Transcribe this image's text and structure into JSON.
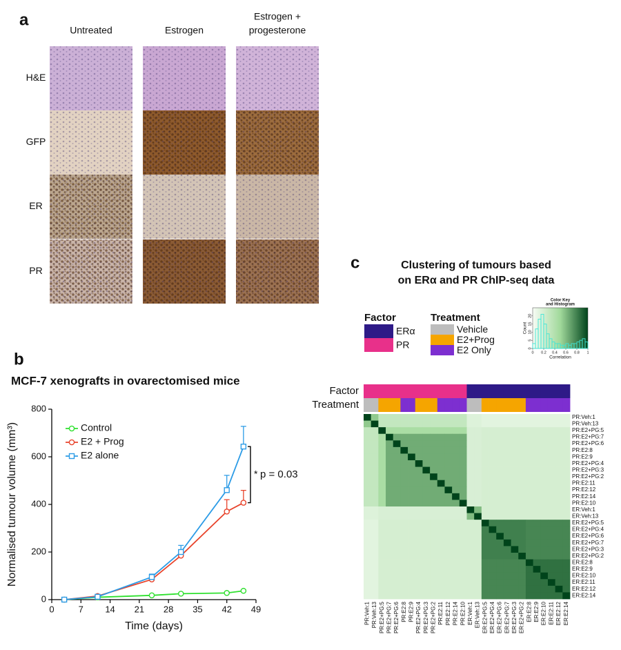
{
  "panel_labels": [
    "a",
    "b",
    "c"
  ],
  "panel_a": {
    "columns": [
      [
        "Untreated"
      ],
      [
        "Estrogen"
      ],
      [
        "Estrogen +",
        "progesterone"
      ]
    ],
    "rows": [
      "H&E",
      "GFP",
      "ER",
      "PR"
    ]
  },
  "chart_data": [
    {
      "type": "line",
      "title": "MCF-7 xenografts in ovarectomised mice",
      "x_label": "Time (days)",
      "y_label": "Normalised tumour volume (mm³)",
      "x": [
        3,
        11,
        24,
        31,
        42,
        46
      ],
      "series": [
        {
          "name": "Control",
          "color": "#2ee02e",
          "marker": "circle",
          "values": [
            0,
            10,
            18,
            25,
            28,
            37
          ],
          "errors": [
            0,
            2,
            2,
            2,
            3,
            4
          ]
        },
        {
          "name": "E2 + Prog",
          "color": "#e8432b",
          "marker": "circle",
          "values": [
            0,
            15,
            85,
            185,
            370,
            407
          ],
          "errors": [
            0,
            3,
            10,
            15,
            50,
            52
          ]
        },
        {
          "name": "E2 alone",
          "color": "#2b9be6",
          "marker": "square",
          "values": [
            0,
            12,
            95,
            200,
            460,
            643
          ],
          "errors": [
            0,
            3,
            12,
            28,
            62,
            85
          ]
        }
      ],
      "xlim": [
        0,
        49
      ],
      "xticks": [
        0,
        7,
        14,
        21,
        28,
        35,
        42,
        49
      ],
      "ylim": [
        0,
        800
      ],
      "yticks": [
        0,
        200,
        400,
        600,
        800
      ],
      "legend": "upper left",
      "significance": {
        "star": "*",
        "text": "p = 0.03"
      }
    },
    {
      "type": "heatmap",
      "title": [
        "Clustering of tumours based",
        "on ERα and PR ChIP-seq data"
      ],
      "labels": [
        "PR:Veh:1",
        "PR:Veh:13",
        "PR:E2+PG:5",
        "PR:E2+PG:7",
        "PR:E2+PG:6",
        "PR:E2:8",
        "PR:E2:9",
        "PR:E2+PG:4",
        "PR:E2+PG:3",
        "PR:E2+PG:2",
        "PR:E2:11",
        "PR:E2:12",
        "PR:E2:14",
        "PR:E2:10",
        "ER:Veh:1",
        "ER:Veh:13",
        "ER:E2+PG:5",
        "ER:E2+PG:4",
        "ER:E2+PG:6",
        "ER:E2+PG:7",
        "ER:E2+PG:3",
        "ER:E2+PG:2",
        "ER:E2:8",
        "ER:E2:9",
        "ER:E2:10",
        "ER:E2:11",
        "ER:E2:12",
        "ER:E2:14"
      ],
      "annotations": [
        {
          "name": "Factor",
          "legend": [
            {
              "name": "ERα",
              "color": "#2e1a87"
            },
            {
              "name": "PR",
              "color": "#e8308a"
            }
          ],
          "values": [
            "PR",
            "PR",
            "PR",
            "PR",
            "PR",
            "PR",
            "PR",
            "PR",
            "PR",
            "PR",
            "PR",
            "PR",
            "PR",
            "PR",
            "ERα",
            "ERα",
            "ERα",
            "ERα",
            "ERα",
            "ERα",
            "ERα",
            "ERα",
            "ERα",
            "ERα",
            "ERα",
            "ERα",
            "ERα",
            "ERα"
          ]
        },
        {
          "name": "Treatment",
          "legend": [
            {
              "name": "Vehicle",
              "color": "#bdbdbd"
            },
            {
              "name": "E2+Prog",
              "color": "#f5a500"
            },
            {
              "name": "E2 Only",
              "color": "#7d2fd0"
            }
          ],
          "values": [
            "Vehicle",
            "Vehicle",
            "E2+Prog",
            "E2+Prog",
            "E2+Prog",
            "E2 Only",
            "E2 Only",
            "E2+Prog",
            "E2+Prog",
            "E2+Prog",
            "E2 Only",
            "E2 Only",
            "E2 Only",
            "E2 Only",
            "Vehicle",
            "Vehicle",
            "E2+Prog",
            "E2+Prog",
            "E2+Prog",
            "E2+Prog",
            "E2+Prog",
            "E2+Prog",
            "E2 Only",
            "E2 Only",
            "E2 Only",
            "E2 Only",
            "E2 Only",
            "E2 Only"
          ]
        }
      ],
      "zlim": [
        0,
        1
      ],
      "colorscale": [
        "#f7fcf5",
        "#a1d99b",
        "#00441b"
      ],
      "values": [
        [
          1,
          0.55,
          0.3,
          0.3,
          0.3,
          0.3,
          0.3,
          0.3,
          0.3,
          0.3,
          0.3,
          0.3,
          0.3,
          0.3,
          0.15,
          0.15,
          0.12,
          0.12,
          0.12,
          0.12,
          0.12,
          0.12,
          0.12,
          0.12,
          0.12,
          0.12,
          0.12,
          0.12
        ],
        [
          0.55,
          1,
          0.3,
          0.3,
          0.3,
          0.3,
          0.3,
          0.3,
          0.3,
          0.3,
          0.3,
          0.3,
          0.3,
          0.3,
          0.15,
          0.15,
          0.12,
          0.12,
          0.12,
          0.12,
          0.12,
          0.12,
          0.12,
          0.12,
          0.12,
          0.12,
          0.12,
          0.12
        ],
        [
          0.3,
          0.3,
          1,
          0.45,
          0.45,
          0.45,
          0.45,
          0.45,
          0.45,
          0.45,
          0.45,
          0.45,
          0.45,
          0.45,
          0.18,
          0.18,
          0.2,
          0.2,
          0.2,
          0.2,
          0.2,
          0.2,
          0.2,
          0.2,
          0.2,
          0.2,
          0.2,
          0.2
        ],
        [
          0.3,
          0.3,
          0.45,
          1,
          0.65,
          0.65,
          0.65,
          0.65,
          0.65,
          0.65,
          0.65,
          0.65,
          0.65,
          0.65,
          0.18,
          0.18,
          0.2,
          0.2,
          0.2,
          0.2,
          0.2,
          0.2,
          0.2,
          0.2,
          0.2,
          0.2,
          0.2,
          0.2
        ],
        [
          0.3,
          0.3,
          0.45,
          0.65,
          1,
          0.65,
          0.65,
          0.65,
          0.65,
          0.65,
          0.65,
          0.65,
          0.65,
          0.65,
          0.18,
          0.18,
          0.2,
          0.2,
          0.2,
          0.2,
          0.2,
          0.2,
          0.2,
          0.2,
          0.2,
          0.2,
          0.2,
          0.2
        ],
        [
          0.3,
          0.3,
          0.45,
          0.65,
          0.65,
          1,
          0.65,
          0.65,
          0.65,
          0.65,
          0.65,
          0.65,
          0.65,
          0.65,
          0.18,
          0.18,
          0.2,
          0.2,
          0.2,
          0.2,
          0.2,
          0.2,
          0.2,
          0.2,
          0.2,
          0.2,
          0.2,
          0.2
        ],
        [
          0.3,
          0.3,
          0.45,
          0.65,
          0.65,
          0.65,
          1,
          0.65,
          0.65,
          0.65,
          0.65,
          0.65,
          0.65,
          0.65,
          0.18,
          0.18,
          0.2,
          0.2,
          0.2,
          0.2,
          0.2,
          0.2,
          0.2,
          0.2,
          0.2,
          0.2,
          0.2,
          0.2
        ],
        [
          0.3,
          0.3,
          0.45,
          0.65,
          0.65,
          0.65,
          0.65,
          1,
          0.65,
          0.65,
          0.65,
          0.65,
          0.65,
          0.65,
          0.18,
          0.18,
          0.2,
          0.2,
          0.2,
          0.2,
          0.2,
          0.2,
          0.2,
          0.2,
          0.2,
          0.2,
          0.2,
          0.2
        ],
        [
          0.3,
          0.3,
          0.45,
          0.65,
          0.65,
          0.65,
          0.65,
          0.65,
          1,
          0.65,
          0.65,
          0.65,
          0.65,
          0.65,
          0.18,
          0.18,
          0.2,
          0.2,
          0.2,
          0.2,
          0.2,
          0.2,
          0.2,
          0.2,
          0.2,
          0.2,
          0.2,
          0.2
        ],
        [
          0.3,
          0.3,
          0.45,
          0.65,
          0.65,
          0.65,
          0.65,
          0.65,
          0.65,
          1,
          0.65,
          0.65,
          0.65,
          0.65,
          0.18,
          0.18,
          0.2,
          0.2,
          0.2,
          0.2,
          0.2,
          0.2,
          0.2,
          0.2,
          0.2,
          0.2,
          0.2,
          0.2
        ],
        [
          0.3,
          0.3,
          0.45,
          0.65,
          0.65,
          0.65,
          0.65,
          0.65,
          0.65,
          0.65,
          1,
          0.65,
          0.65,
          0.65,
          0.18,
          0.18,
          0.2,
          0.2,
          0.2,
          0.2,
          0.2,
          0.2,
          0.2,
          0.2,
          0.2,
          0.2,
          0.2,
          0.2
        ],
        [
          0.3,
          0.3,
          0.45,
          0.65,
          0.65,
          0.65,
          0.65,
          0.65,
          0.65,
          0.65,
          0.65,
          1,
          0.65,
          0.65,
          0.18,
          0.18,
          0.2,
          0.2,
          0.2,
          0.2,
          0.2,
          0.2,
          0.2,
          0.2,
          0.2,
          0.2,
          0.2,
          0.2
        ],
        [
          0.3,
          0.3,
          0.45,
          0.65,
          0.65,
          0.65,
          0.65,
          0.65,
          0.65,
          0.65,
          0.65,
          0.65,
          1,
          0.65,
          0.18,
          0.18,
          0.2,
          0.2,
          0.2,
          0.2,
          0.2,
          0.2,
          0.2,
          0.2,
          0.2,
          0.2,
          0.2,
          0.2
        ],
        [
          0.3,
          0.3,
          0.45,
          0.65,
          0.65,
          0.65,
          0.65,
          0.65,
          0.65,
          0.65,
          0.65,
          0.65,
          0.65,
          1,
          0.18,
          0.18,
          0.2,
          0.2,
          0.2,
          0.2,
          0.2,
          0.2,
          0.2,
          0.2,
          0.2,
          0.2,
          0.2,
          0.2
        ],
        [
          0.15,
          0.15,
          0.18,
          0.18,
          0.18,
          0.18,
          0.18,
          0.18,
          0.18,
          0.18,
          0.18,
          0.18,
          0.18,
          0.18,
          1,
          0.6,
          0.2,
          0.2,
          0.2,
          0.2,
          0.2,
          0.2,
          0.2,
          0.2,
          0.2,
          0.2,
          0.2,
          0.2
        ],
        [
          0.15,
          0.15,
          0.18,
          0.18,
          0.18,
          0.18,
          0.18,
          0.18,
          0.18,
          0.18,
          0.18,
          0.18,
          0.18,
          0.18,
          0.6,
          1,
          0.2,
          0.2,
          0.2,
          0.2,
          0.2,
          0.2,
          0.2,
          0.2,
          0.2,
          0.2,
          0.2,
          0.2
        ],
        [
          0.12,
          0.12,
          0.2,
          0.2,
          0.2,
          0.2,
          0.2,
          0.2,
          0.2,
          0.2,
          0.2,
          0.2,
          0.2,
          0.2,
          0.2,
          0.2,
          1,
          0.8,
          0.8,
          0.8,
          0.8,
          0.8,
          0.78,
          0.78,
          0.78,
          0.78,
          0.78,
          0.78
        ],
        [
          0.12,
          0.12,
          0.2,
          0.2,
          0.2,
          0.2,
          0.2,
          0.2,
          0.2,
          0.2,
          0.2,
          0.2,
          0.2,
          0.2,
          0.2,
          0.2,
          0.8,
          1,
          0.8,
          0.8,
          0.8,
          0.8,
          0.78,
          0.78,
          0.78,
          0.78,
          0.78,
          0.78
        ],
        [
          0.12,
          0.12,
          0.2,
          0.2,
          0.2,
          0.2,
          0.2,
          0.2,
          0.2,
          0.2,
          0.2,
          0.2,
          0.2,
          0.2,
          0.2,
          0.2,
          0.8,
          0.8,
          1,
          0.8,
          0.8,
          0.8,
          0.78,
          0.78,
          0.78,
          0.78,
          0.78,
          0.78
        ],
        [
          0.12,
          0.12,
          0.2,
          0.2,
          0.2,
          0.2,
          0.2,
          0.2,
          0.2,
          0.2,
          0.2,
          0.2,
          0.2,
          0.2,
          0.2,
          0.2,
          0.8,
          0.8,
          0.8,
          1,
          0.8,
          0.8,
          0.78,
          0.78,
          0.78,
          0.78,
          0.78,
          0.78
        ],
        [
          0.12,
          0.12,
          0.2,
          0.2,
          0.2,
          0.2,
          0.2,
          0.2,
          0.2,
          0.2,
          0.2,
          0.2,
          0.2,
          0.2,
          0.2,
          0.2,
          0.8,
          0.8,
          0.8,
          0.8,
          1,
          0.8,
          0.78,
          0.78,
          0.78,
          0.78,
          0.78,
          0.78
        ],
        [
          0.12,
          0.12,
          0.2,
          0.2,
          0.2,
          0.2,
          0.2,
          0.2,
          0.2,
          0.2,
          0.2,
          0.2,
          0.2,
          0.2,
          0.2,
          0.2,
          0.8,
          0.8,
          0.8,
          0.8,
          0.8,
          1,
          0.78,
          0.78,
          0.78,
          0.78,
          0.78,
          0.78
        ],
        [
          0.12,
          0.12,
          0.2,
          0.2,
          0.2,
          0.2,
          0.2,
          0.2,
          0.2,
          0.2,
          0.2,
          0.2,
          0.2,
          0.2,
          0.2,
          0.2,
          0.78,
          0.78,
          0.78,
          0.78,
          0.78,
          0.78,
          1,
          0.85,
          0.85,
          0.85,
          0.85,
          0.85
        ],
        [
          0.12,
          0.12,
          0.2,
          0.2,
          0.2,
          0.2,
          0.2,
          0.2,
          0.2,
          0.2,
          0.2,
          0.2,
          0.2,
          0.2,
          0.2,
          0.2,
          0.78,
          0.78,
          0.78,
          0.78,
          0.78,
          0.78,
          0.85,
          1,
          0.85,
          0.85,
          0.85,
          0.85
        ],
        [
          0.12,
          0.12,
          0.2,
          0.2,
          0.2,
          0.2,
          0.2,
          0.2,
          0.2,
          0.2,
          0.2,
          0.2,
          0.2,
          0.2,
          0.2,
          0.2,
          0.78,
          0.78,
          0.78,
          0.78,
          0.78,
          0.78,
          0.85,
          0.85,
          1,
          0.85,
          0.85,
          0.85
        ],
        [
          0.12,
          0.12,
          0.2,
          0.2,
          0.2,
          0.2,
          0.2,
          0.2,
          0.2,
          0.2,
          0.2,
          0.2,
          0.2,
          0.2,
          0.2,
          0.2,
          0.78,
          0.78,
          0.78,
          0.78,
          0.78,
          0.78,
          0.85,
          0.85,
          0.85,
          1,
          0.85,
          0.85
        ],
        [
          0.12,
          0.12,
          0.2,
          0.2,
          0.2,
          0.2,
          0.2,
          0.2,
          0.2,
          0.2,
          0.2,
          0.2,
          0.2,
          0.2,
          0.2,
          0.2,
          0.78,
          0.78,
          0.78,
          0.78,
          0.78,
          0.78,
          0.85,
          0.85,
          0.85,
          0.85,
          1,
          0.85
        ],
        [
          0.12,
          0.12,
          0.2,
          0.2,
          0.2,
          0.2,
          0.2,
          0.2,
          0.2,
          0.2,
          0.2,
          0.2,
          0.2,
          0.2,
          0.2,
          0.2,
          0.78,
          0.78,
          0.78,
          0.78,
          0.78,
          0.78,
          0.85,
          0.85,
          0.85,
          0.85,
          0.85,
          1
        ]
      ]
    },
    {
      "type": "histogram",
      "title": [
        "Color Key",
        "and Histogram"
      ],
      "x_label": "Correlation",
      "y_label": "Count",
      "color": "#3ee6d6",
      "bins": [
        0,
        0.05,
        0.1,
        0.15,
        0.2,
        0.25,
        0.3,
        0.35,
        0.4,
        0.45,
        0.5,
        0.55,
        0.6,
        0.65,
        0.7,
        0.75,
        0.8,
        0.85,
        0.9,
        0.95,
        1
      ],
      "counts": [
        3,
        12,
        18,
        21,
        15,
        9,
        6,
        4,
        3,
        3,
        2,
        2,
        3,
        2,
        3,
        3,
        4,
        5,
        6,
        4
      ],
      "xlim": [
        0,
        1
      ],
      "xticks": [
        0,
        0.2,
        0.4,
        0.6,
        0.8,
        1
      ],
      "ylim": [
        0,
        25
      ],
      "yticks": [
        0,
        5,
        10,
        15,
        20
      ]
    }
  ]
}
